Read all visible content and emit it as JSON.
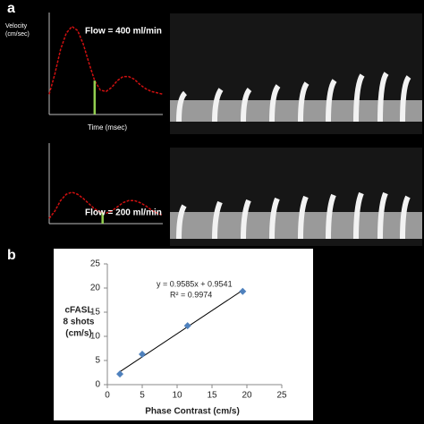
{
  "panel_labels": [
    "a",
    "b"
  ],
  "chart_data": [
    {
      "type": "line",
      "y_label": [
        "Velocity",
        "(cm/sec)"
      ],
      "x_label": "Time (msec)",
      "annotation": "Flow = 400 ml/min",
      "x": [
        0,
        50,
        100,
        150,
        200,
        250,
        300,
        350,
        400,
        450,
        500,
        550,
        600,
        650,
        700,
        750,
        800,
        850,
        900,
        950,
        1000
      ],
      "values": [
        15,
        30,
        48,
        60,
        65,
        62,
        52,
        38,
        25,
        18,
        17,
        20,
        25,
        28,
        28,
        26,
        22,
        19,
        17,
        16,
        15
      ],
      "color": "#d01010",
      "marker_x": 400,
      "marker_color": "#92d050",
      "xlim": [
        0,
        1000
      ],
      "ylim": [
        0,
        70
      ]
    },
    {
      "type": "line",
      "annotation": "Flow = 200 ml/min",
      "x": [
        0,
        50,
        100,
        150,
        200,
        250,
        300,
        350,
        400,
        450,
        500,
        550,
        600,
        650,
        700,
        750,
        800,
        850,
        900,
        950,
        1000
      ],
      "values": [
        5,
        12,
        22,
        28,
        30,
        28,
        24,
        19,
        14,
        11,
        10,
        12,
        16,
        20,
        22,
        22,
        20,
        17,
        13,
        10,
        8
      ],
      "color": "#d01010",
      "marker_x": 470,
      "marker_color": "#92d050",
      "xlim": [
        0,
        1000
      ],
      "ylim": [
        0,
        70
      ]
    },
    {
      "type": "scatter",
      "y_label": [
        "cFASL",
        "8 shots",
        "(cm/s)"
      ],
      "x_label": "Phase Contrast (cm/s)",
      "x": [
        1.8,
        5,
        11.5,
        19.4
      ],
      "values": [
        2.2,
        6.3,
        12.2,
        19.3
      ],
      "color": "#4f81bd",
      "xlim": [
        0,
        25
      ],
      "ylim": [
        0,
        25
      ],
      "xticks": [
        0,
        5,
        10,
        15,
        20,
        25
      ],
      "yticks": [
        0,
        5,
        10,
        15,
        20,
        25
      ],
      "trendline": {
        "equation": "y = 0.9585x + 0.9541",
        "r2": "R² = 0.9974",
        "slope": 0.9585,
        "intercept": 0.9541
      }
    }
  ]
}
